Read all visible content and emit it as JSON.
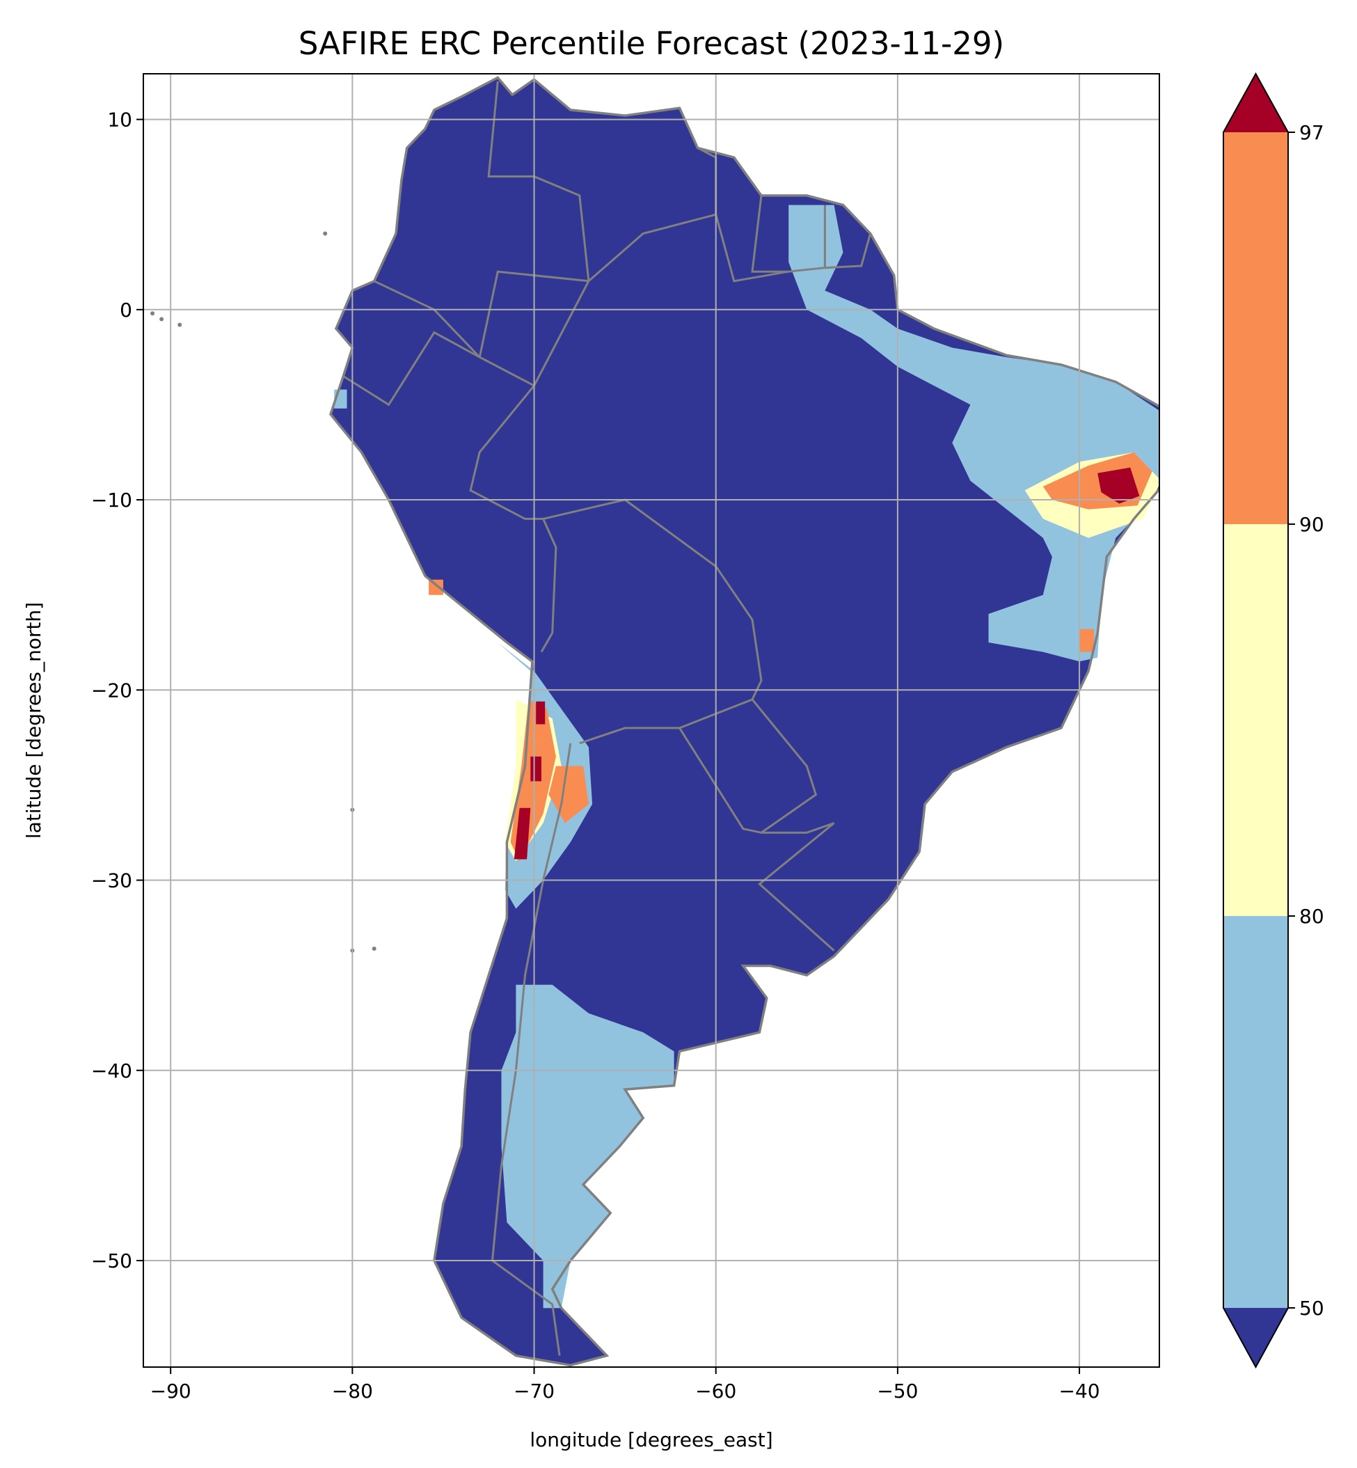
{
  "chart_data": {
    "type": "heatmap",
    "title": "SAFIRE ERC Percentile Forecast (2023-11-29)",
    "xlabel": "longitude [degrees_east]",
    "ylabel": "latitude [degrees_north]",
    "xlim": [
      -91.5,
      -35.6
    ],
    "ylim": [
      -55.6,
      12.4
    ],
    "xticks": [
      -90,
      -80,
      -70,
      -60,
      -50,
      -40
    ],
    "xtick_labels": [
      "−90",
      "−80",
      "−70",
      "−60",
      "−50",
      "−40"
    ],
    "yticks": [
      10,
      0,
      -10,
      -20,
      -30,
      -40,
      -50
    ],
    "ytick_labels": [
      "10",
      "0",
      "−10",
      "−20",
      "−30",
      "−40",
      "−50"
    ],
    "grid": true,
    "colorbar": {
      "position": "right",
      "levels": [
        50,
        80,
        90,
        97
      ],
      "tick_labels": [
        "50",
        "80",
        "90",
        "97"
      ],
      "extend": "both",
      "colors": {
        "under": "#313695",
        "50-80": "#91c2de",
        "80-90": "#ffffbf",
        "90-97": "#f88c51",
        "over": "#a50026"
      }
    },
    "land_outline": [
      [
        -77,
        8.5
      ],
      [
        -76,
        9.5
      ],
      [
        -75.5,
        10.5
      ],
      [
        -74,
        11.2
      ],
      [
        -72,
        12.2
      ],
      [
        -71.2,
        11.3
      ],
      [
        -70,
        12.1
      ],
      [
        -68,
        10.5
      ],
      [
        -65,
        10.2
      ],
      [
        -62,
        10.6
      ],
      [
        -61,
        8.5
      ],
      [
        -59,
        8
      ],
      [
        -57.5,
        6
      ],
      [
        -55,
        6
      ],
      [
        -53,
        5.5
      ],
      [
        -51.5,
        4
      ],
      [
        -50.2,
        1.8
      ],
      [
        -50,
        0
      ],
      [
        -48,
        -1
      ],
      [
        -44,
        -2.4
      ],
      [
        -41,
        -2.9
      ],
      [
        -38,
        -3.8
      ],
      [
        -35.2,
        -5.3
      ],
      [
        -34.8,
        -7.5
      ],
      [
        -35.2,
        -9
      ],
      [
        -37,
        -11
      ],
      [
        -38.5,
        -13
      ],
      [
        -39,
        -17
      ],
      [
        -39.5,
        -19
      ],
      [
        -41,
        -22
      ],
      [
        -44,
        -23
      ],
      [
        -47,
        -24.3
      ],
      [
        -48.5,
        -26
      ],
      [
        -48.8,
        -28.5
      ],
      [
        -50.5,
        -31
      ],
      [
        -52,
        -32.5
      ],
      [
        -53.5,
        -34
      ],
      [
        -55,
        -35
      ],
      [
        -57,
        -34.5
      ],
      [
        -58.5,
        -34.5
      ],
      [
        -57.2,
        -36.2
      ],
      [
        -57.6,
        -38
      ],
      [
        -62,
        -39
      ],
      [
        -62.3,
        -40.8
      ],
      [
        -65,
        -41
      ],
      [
        -64,
        -42.5
      ],
      [
        -65.3,
        -44
      ],
      [
        -67.3,
        -46
      ],
      [
        -65.8,
        -47.5
      ],
      [
        -68,
        -50
      ],
      [
        -69,
        -51.5
      ],
      [
        -68.5,
        -52.5
      ],
      [
        -66,
        -55
      ],
      [
        -68,
        -55.5
      ],
      [
        -71,
        -55
      ],
      [
        -74,
        -53
      ],
      [
        -75.5,
        -50
      ],
      [
        -75,
        -47
      ],
      [
        -74,
        -44
      ],
      [
        -73.8,
        -41
      ],
      [
        -73.5,
        -38
      ],
      [
        -72.5,
        -35
      ],
      [
        -71.5,
        -32
      ],
      [
        -71.5,
        -28
      ],
      [
        -70.5,
        -24
      ],
      [
        -70.1,
        -18.5
      ],
      [
        -71.5,
        -17.5
      ],
      [
        -76,
        -14
      ],
      [
        -78,
        -10
      ],
      [
        -79.5,
        -7.5
      ],
      [
        -81.2,
        -5.5
      ],
      [
        -80.5,
        -3.5
      ],
      [
        -80,
        -2
      ],
      [
        -80.9,
        -1
      ],
      [
        -80,
        1
      ],
      [
        -78.8,
        1.5
      ],
      [
        -77.6,
        4
      ],
      [
        -77.3,
        6.8
      ],
      [
        -77,
        8.5
      ]
    ],
    "regions": [
      {
        "category": "50-80",
        "polygon": [
          [
            -56,
            5.5
          ],
          [
            -53.5,
            5.5
          ],
          [
            -53,
            3
          ],
          [
            -54,
            1
          ],
          [
            -51.5,
            0
          ],
          [
            -50,
            -1
          ],
          [
            -47,
            -2
          ],
          [
            -44,
            -2.5
          ],
          [
            -41,
            -2.9
          ],
          [
            -38,
            -3.8
          ],
          [
            -35.3,
            -5.5
          ],
          [
            -35,
            -8
          ],
          [
            -36,
            -10
          ],
          [
            -38,
            -12
          ],
          [
            -38.8,
            -15
          ],
          [
            -39,
            -18.3
          ],
          [
            -40,
            -18.5
          ],
          [
            -42,
            -18
          ],
          [
            -45,
            -17.5
          ],
          [
            -45,
            -16
          ],
          [
            -42,
            -15
          ],
          [
            -41.5,
            -13
          ],
          [
            -42,
            -12
          ],
          [
            -44,
            -10.5
          ],
          [
            -46,
            -9
          ],
          [
            -47,
            -7
          ],
          [
            -46,
            -5
          ],
          [
            -48,
            -4
          ],
          [
            -50,
            -3
          ],
          [
            -52,
            -1.5
          ],
          [
            -55,
            0
          ],
          [
            -56,
            2.5
          ]
        ]
      },
      {
        "category": "50-80",
        "polygon": [
          [
            -71,
            -35.5
          ],
          [
            -69,
            -35.5
          ],
          [
            -67,
            -37
          ],
          [
            -64,
            -38
          ],
          [
            -62.3,
            -39
          ],
          [
            -62.3,
            -40.8
          ],
          [
            -65,
            -41
          ],
          [
            -64,
            -42.5
          ],
          [
            -65.3,
            -44
          ],
          [
            -67.3,
            -46
          ],
          [
            -65.8,
            -47.5
          ],
          [
            -68,
            -50
          ],
          [
            -68.5,
            -52.5
          ],
          [
            -69.5,
            -52.5
          ],
          [
            -69.5,
            -50
          ],
          [
            -71.5,
            -48
          ],
          [
            -71.8,
            -44
          ],
          [
            -71.8,
            -40
          ],
          [
            -71,
            -38
          ]
        ]
      },
      {
        "category": "50-80",
        "polygon": [
          [
            -72,
            -17.5
          ],
          [
            -70,
            -19
          ],
          [
            -68.5,
            -21
          ],
          [
            -67,
            -23
          ],
          [
            -66.8,
            -26
          ],
          [
            -68,
            -28
          ],
          [
            -69.5,
            -30
          ],
          [
            -71,
            -31.5
          ],
          [
            -71.6,
            -30.5
          ],
          [
            -71.5,
            -28
          ],
          [
            -70.6,
            -24
          ],
          [
            -70.2,
            -19
          ]
        ]
      },
      {
        "category": "50-80",
        "polygon": [
          [
            -81,
            -4.2
          ],
          [
            -80.3,
            -4.2
          ],
          [
            -80.3,
            -5.2
          ],
          [
            -81,
            -5.2
          ]
        ]
      },
      {
        "category": "80-90",
        "polygon": [
          [
            -43,
            -9.5
          ],
          [
            -40,
            -8
          ],
          [
            -37,
            -7.5
          ],
          [
            -35.5,
            -9
          ],
          [
            -36.5,
            -11
          ],
          [
            -39.5,
            -12
          ],
          [
            -42,
            -11
          ]
        ]
      },
      {
        "category": "80-90",
        "polygon": [
          [
            -71,
            -20.5
          ],
          [
            -69,
            -21.5
          ],
          [
            -68.5,
            -24
          ],
          [
            -69.5,
            -27
          ],
          [
            -71,
            -29
          ],
          [
            -71.6,
            -28
          ],
          [
            -71,
            -24
          ]
        ]
      },
      {
        "category": "90-97",
        "polygon": [
          [
            -42,
            -9.3
          ],
          [
            -39.5,
            -8.2
          ],
          [
            -37,
            -7.5
          ],
          [
            -36,
            -8.5
          ],
          [
            -36.8,
            -10.3
          ],
          [
            -39.5,
            -10.5
          ],
          [
            -41.5,
            -10
          ]
        ]
      },
      {
        "category": "90-97",
        "polygon": [
          [
            -70.3,
            -20.5
          ],
          [
            -69.3,
            -21
          ],
          [
            -68.8,
            -23.5
          ],
          [
            -69.5,
            -26.5
          ],
          [
            -70.8,
            -29
          ],
          [
            -71.3,
            -28
          ],
          [
            -70.7,
            -24
          ]
        ]
      },
      {
        "category": "90-97",
        "polygon": [
          [
            -68.8,
            -24
          ],
          [
            -67.3,
            -24
          ],
          [
            -67,
            -26
          ],
          [
            -68.3,
            -27
          ],
          [
            -69.2,
            -25.5
          ]
        ]
      },
      {
        "category": "90-97",
        "polygon": [
          [
            -40,
            -16.8
          ],
          [
            -39.2,
            -16.8
          ],
          [
            -39.2,
            -18
          ],
          [
            -40,
            -18
          ]
        ]
      },
      {
        "category": "90-97",
        "polygon": [
          [
            -75.8,
            -14.2
          ],
          [
            -75,
            -14.2
          ],
          [
            -75,
            -15
          ],
          [
            -75.8,
            -15
          ]
        ]
      },
      {
        "category": "over",
        "polygon": [
          [
            -39,
            -8.6
          ],
          [
            -37.2,
            -8.3
          ],
          [
            -36.7,
            -9.8
          ],
          [
            -37.8,
            -10.2
          ],
          [
            -38.8,
            -9.6
          ]
        ]
      },
      {
        "category": "over",
        "polygon": [
          [
            -70.8,
            -26.2
          ],
          [
            -70.2,
            -26.2
          ],
          [
            -70.4,
            -28.9
          ],
          [
            -71.1,
            -28.9
          ]
        ]
      },
      {
        "category": "over",
        "polygon": [
          [
            -70.2,
            -23.5
          ],
          [
            -69.6,
            -23.5
          ],
          [
            -69.6,
            -24.8
          ],
          [
            -70.2,
            -24.8
          ]
        ]
      },
      {
        "category": "over",
        "polygon": [
          [
            -69.9,
            -20.6
          ],
          [
            -69.4,
            -20.6
          ],
          [
            -69.4,
            -21.8
          ],
          [
            -69.9,
            -21.8
          ]
        ]
      }
    ],
    "borders": [
      [
        [
          -60,
          5
        ],
        [
          -64,
          4
        ],
        [
          -67,
          1.5
        ],
        [
          -70,
          -4
        ],
        [
          -73,
          -7.5
        ],
        [
          -73.5,
          -9.5
        ],
        [
          -70.5,
          -11
        ],
        [
          -69.5,
          -11
        ],
        [
          -65,
          -10
        ],
        [
          -60,
          -13.5
        ],
        [
          -58,
          -16.3
        ],
        [
          -57.5,
          -19.5
        ],
        [
          -58,
          -20.5
        ],
        [
          -62,
          -22
        ],
        [
          -65,
          -22
        ],
        [
          -67.5,
          -22.8
        ]
      ],
      [
        [
          -58,
          -20.5
        ],
        [
          -55,
          -24
        ],
        [
          -54.5,
          -25.5
        ],
        [
          -57.5,
          -27.5
        ],
        [
          -58.5,
          -27.3
        ],
        [
          -62,
          -22
        ]
      ],
      [
        [
          -57.5,
          -27.5
        ],
        [
          -55,
          -27.5
        ],
        [
          -53.5,
          -27
        ],
        [
          -57.6,
          -30.2
        ],
        [
          -53.5,
          -33.7
        ]
      ],
      [
        [
          -68,
          -22.8
        ],
        [
          -68.5,
          -26
        ],
        [
          -69.5,
          -30
        ],
        [
          -70.5,
          -35
        ],
        [
          -71,
          -40
        ],
        [
          -71.8,
          -45
        ],
        [
          -72.3,
          -50
        ],
        [
          -69,
          -52.3
        ],
        [
          -68.6,
          -55
        ]
      ],
      [
        [
          -69.6,
          -18
        ],
        [
          -69,
          -17
        ],
        [
          -68.8,
          -12.5
        ],
        [
          -69.5,
          -11
        ]
      ],
      [
        [
          -80.5,
          -3.5
        ],
        [
          -78,
          -5
        ],
        [
          -75.5,
          -1.2
        ],
        [
          -73,
          -2.5
        ],
        [
          -70,
          -4
        ]
      ],
      [
        [
          -78.8,
          1.5
        ],
        [
          -75.5,
          0
        ],
        [
          -73,
          -2.5
        ]
      ],
      [
        [
          -73,
          -2.5
        ],
        [
          -72,
          2
        ],
        [
          -67,
          1.5
        ]
      ],
      [
        [
          -72,
          12
        ],
        [
          -72.5,
          7
        ],
        [
          -70,
          7
        ],
        [
          -67.5,
          6
        ],
        [
          -67,
          1.5
        ]
      ],
      [
        [
          -60,
          5
        ],
        [
          -60,
          8
        ],
        [
          -61,
          8.5
        ]
      ],
      [
        [
          -57.5,
          6
        ],
        [
          -58,
          2
        ],
        [
          -56,
          2
        ],
        [
          -54,
          2.2
        ],
        [
          -54,
          5.5
        ]
      ],
      [
        [
          -54,
          2.2
        ],
        [
          -52,
          2.3
        ],
        [
          -51.5,
          4
        ]
      ],
      [
        [
          -60,
          5
        ],
        [
          -59,
          1.5
        ],
        [
          -56,
          2
        ]
      ]
    ],
    "islands": [
      [
        -90.5,
        -0.5
      ],
      [
        -91,
        -0.2
      ],
      [
        -89.5,
        -0.8
      ],
      [
        -80,
        -33.7
      ],
      [
        -78.8,
        -33.6
      ],
      [
        -81.5,
        4
      ],
      [
        -80,
        -26.3
      ]
    ]
  }
}
